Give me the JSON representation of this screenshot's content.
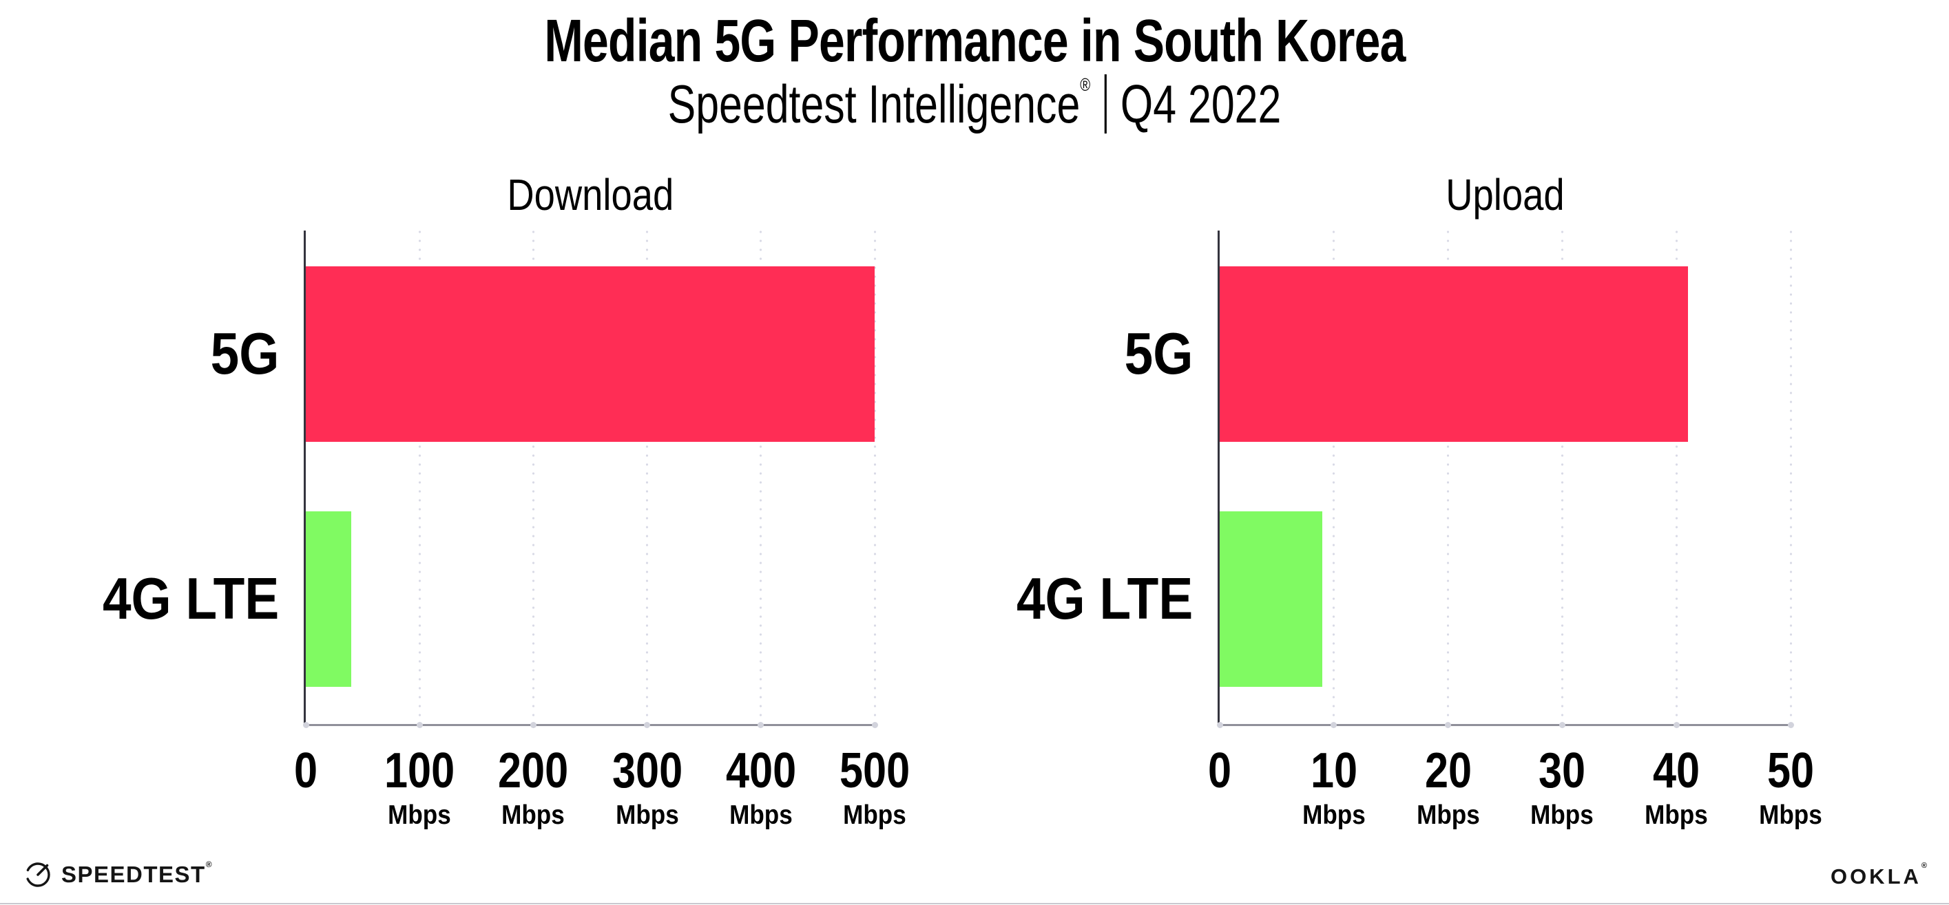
{
  "header": {
    "title": "Median 5G Performance in South Korea",
    "subtitle_brand": "Speedtest Intelligence",
    "subtitle_reg_mark": "®",
    "subtitle_period": "Q4 2022"
  },
  "chart_data": [
    {
      "type": "bar",
      "orientation": "horizontal",
      "title": "Download",
      "categories": [
        "5G",
        "4G LTE"
      ],
      "values": [
        500,
        40
      ],
      "unit": "Mbps",
      "xticks": [
        0,
        100,
        200,
        300,
        400,
        500
      ],
      "xlim": [
        0,
        500
      ],
      "xlabel": "",
      "ylabel": "",
      "bar_colors": [
        "#FF2D55",
        "#80FA62"
      ],
      "grid": "dotted-vertical",
      "legend": false
    },
    {
      "type": "bar",
      "orientation": "horizontal",
      "title": "Upload",
      "categories": [
        "5G",
        "4G LTE"
      ],
      "values": [
        41,
        9
      ],
      "unit": "Mbps",
      "xticks": [
        0,
        10,
        20,
        30,
        40,
        50
      ],
      "xlim": [
        0,
        50
      ],
      "xlabel": "",
      "ylabel": "",
      "bar_colors": [
        "#FF2D55",
        "#80FA62"
      ],
      "grid": "dotted-vertical",
      "legend": false
    }
  ],
  "footer": {
    "speedtest_logo_text": "SPEEDTEST",
    "speedtest_reg_mark": "®",
    "ookla_logo_text": "OOKLA",
    "ookla_reg_mark": "®"
  },
  "styles": {
    "bar_5g_color": "#FF2D55",
    "bar_4g_color": "#80FA62",
    "y_axis_color": "#34343e",
    "x_axis_color": "#90909a",
    "grid_dot_color": "#d9dae6",
    "tick_dot_color": "#d2d3dc",
    "text_color": "#000000",
    "bottom_rule_color": "#c9c9cf",
    "logo_color": "#151515"
  }
}
